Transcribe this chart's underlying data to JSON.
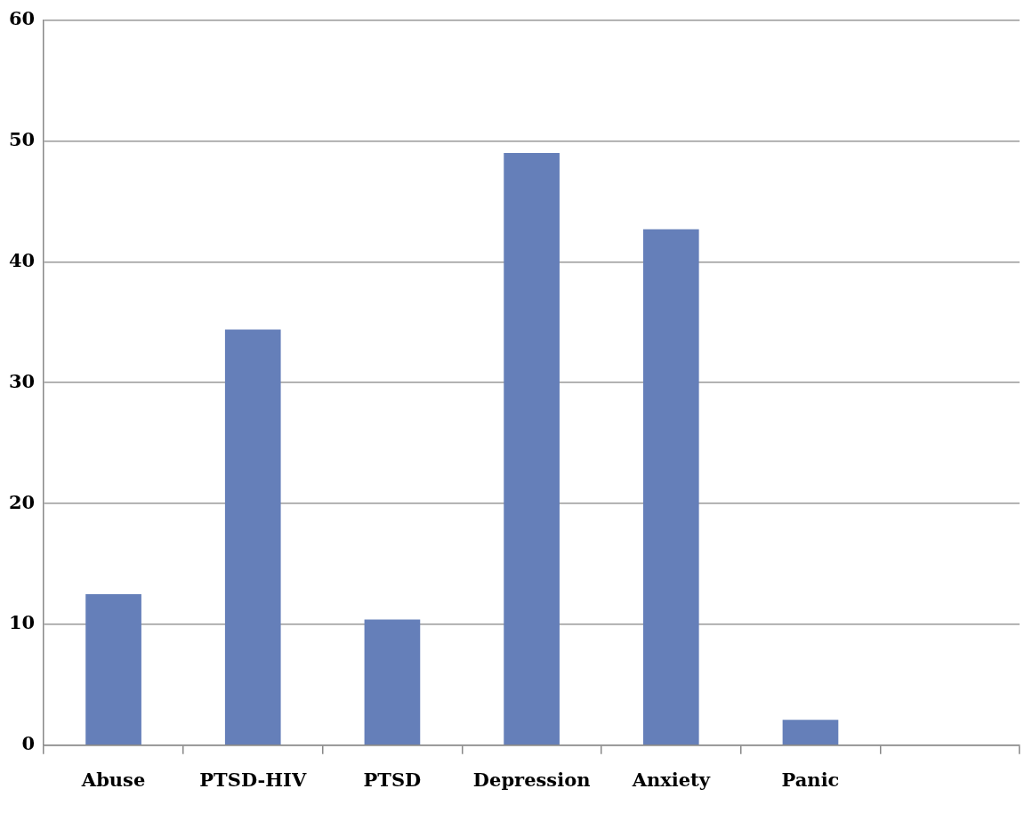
{
  "chart_data": {
    "type": "bar",
    "categories": [
      "Abuse",
      "PTSD-HIV",
      "PTSD",
      "Depression",
      "Anxiety",
      "Panic",
      null
    ],
    "values": [
      12.5,
      34.4,
      10.4,
      49.0,
      42.7,
      2.1,
      null
    ],
    "color": "#657fb9",
    "ylim": [
      0,
      60
    ],
    "yticks": [
      0,
      10,
      20,
      30,
      40,
      50,
      60
    ],
    "grid": "y"
  }
}
